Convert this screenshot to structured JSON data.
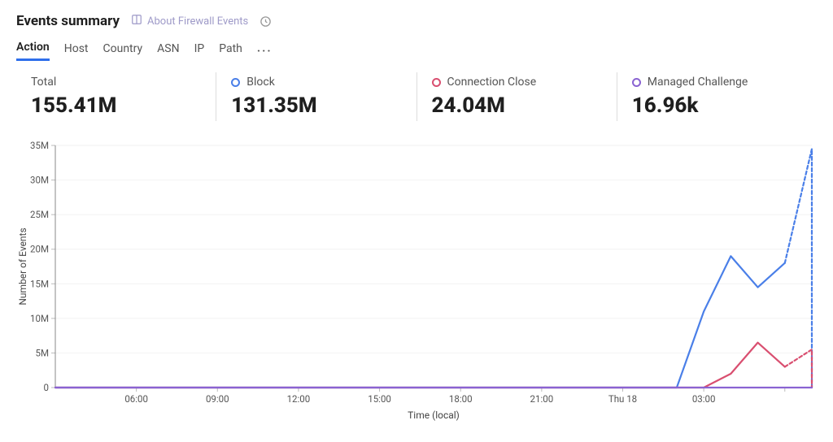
{
  "header": {
    "title": "Events summary",
    "about_label": "About Firewall Events"
  },
  "tabs": {
    "items": [
      "Action",
      "Host",
      "Country",
      "ASN",
      "IP",
      "Path"
    ],
    "active_index": 0,
    "active_underline_color": "#2f6feb"
  },
  "stats": [
    {
      "label": "Total",
      "value": "155.41M",
      "marker": null
    },
    {
      "label": "Block",
      "value": "131.35M",
      "marker": "#4a7fe8"
    },
    {
      "label": "Connection Close",
      "value": "24.04M",
      "marker": "#d94f70"
    },
    {
      "label": "Managed Challenge",
      "value": "16.96k",
      "marker": "#8a63d2"
    }
  ],
  "chart": {
    "type": "line",
    "y_axis_title": "Number of Events",
    "x_axis_title": "Time (local)",
    "ylim": [
      0,
      35000000
    ],
    "ytick_step": 5000000,
    "ytick_labels": [
      "0",
      "5M",
      "10M",
      "15M",
      "20M",
      "25M",
      "30M",
      "35M"
    ],
    "x_count": 29,
    "xtick_positions": [
      3,
      6,
      9,
      12,
      15,
      18,
      21,
      24,
      27
    ],
    "xtick_labels": [
      "06:00",
      "09:00",
      "12:00",
      "15:00",
      "18:00",
      "21:00",
      "Thu 18",
      "03:00",
      ""
    ],
    "background_color": "#ffffff",
    "grid_color": "#f2f2f2",
    "axis_color": "#888888",
    "label_fontsize": 11.5,
    "line_width": 2.2,
    "series": [
      {
        "name": "Block",
        "color": "#4a7fe8",
        "dashed_from_index": 27,
        "values": [
          0,
          0,
          0,
          0,
          0,
          0,
          0,
          0,
          0,
          0,
          0,
          0,
          0,
          0,
          0,
          0,
          0,
          0,
          0,
          0,
          0,
          0,
          0,
          0,
          11000000,
          19000000,
          14500000,
          18000000,
          34500000
        ]
      },
      {
        "name": "Connection Close",
        "color": "#d94f70",
        "dashed_from_index": 27,
        "values": [
          0,
          0,
          0,
          0,
          0,
          0,
          0,
          0,
          0,
          0,
          0,
          0,
          0,
          0,
          0,
          0,
          0,
          0,
          0,
          0,
          0,
          0,
          0,
          0,
          0,
          2000000,
          6500000,
          3000000,
          5500000
        ]
      },
      {
        "name": "Managed Challenge",
        "color": "#8a63d2",
        "dashed_from_index": 28,
        "values": [
          0,
          0,
          0,
          0,
          0,
          0,
          0,
          0,
          0,
          0,
          0,
          0,
          0,
          0,
          0,
          0,
          0,
          0,
          0,
          0,
          0,
          0,
          0,
          0,
          0,
          0,
          0,
          0,
          0
        ]
      }
    ]
  }
}
